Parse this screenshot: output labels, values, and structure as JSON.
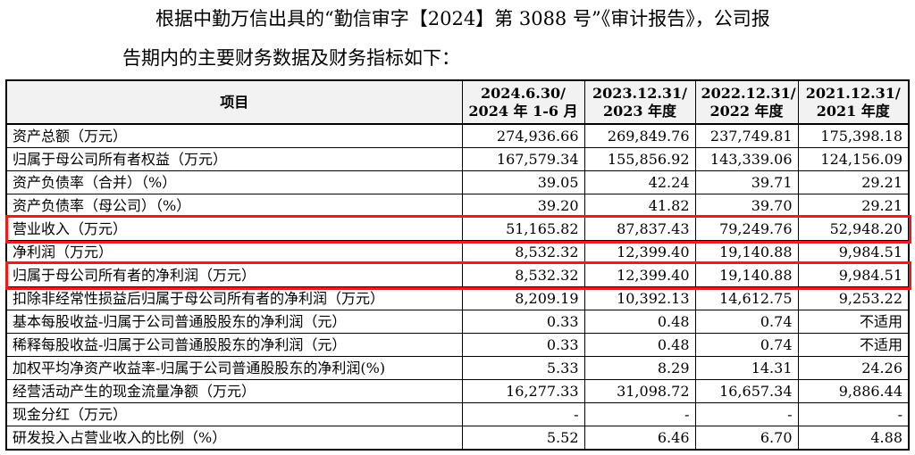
{
  "intro": {
    "line1": "根据中勤万信出具的“勤信审字【2024】第 3088 号”《审计报告》，公司报",
    "line2": "告期内的主要财务数据及财务指标如下："
  },
  "table": {
    "header": {
      "item": "项目",
      "periods": [
        {
          "line1": "2024.6.30/",
          "line2": "2024 年 1-6 月"
        },
        {
          "line1": "2023.12.31/",
          "line2": "2023 年度"
        },
        {
          "line1": "2022.12.31/",
          "line2": "2022 年度"
        },
        {
          "line1": "2021.12.31/",
          "line2": "2021 年度"
        }
      ]
    },
    "rows": [
      {
        "label": "资产总额（万元）",
        "values": [
          "274,936.66",
          "269,849.76",
          "237,749.81",
          "175,398.18"
        ]
      },
      {
        "label": "归属于母公司所有者权益（万元）",
        "values": [
          "167,579.34",
          "155,856.92",
          "143,339.06",
          "124,156.09"
        ]
      },
      {
        "label": "资产负债率（合并）（%）",
        "values": [
          "39.05",
          "42.24",
          "39.71",
          "29.21"
        ]
      },
      {
        "label": "资产负债率（母公司）（%）",
        "values": [
          "39.20",
          "41.82",
          "39.70",
          "29.21"
        ]
      },
      {
        "label": "营业收入（万元）",
        "values": [
          "51,165.82",
          "87,837.43",
          "79,249.76",
          "52,948.20"
        ]
      },
      {
        "label": "净利润（万元）",
        "values": [
          "8,532.32",
          "12,399.40",
          "19,140.88",
          "9,984.51"
        ]
      },
      {
        "label": "归属于母公司所有者的净利润（万元）",
        "values": [
          "8,532.32",
          "12,399.40",
          "19,140.88",
          "9,984.51"
        ]
      },
      {
        "label": "扣除非经常性损益后归属于母公司所有者的净利润（万元）",
        "values": [
          "8,209.19",
          "10,392.13",
          "14,612.75",
          "9,253.22"
        ]
      },
      {
        "label": "基本每股收益-归属于公司普通股股东的净利润（元）",
        "values": [
          "0.33",
          "0.48",
          "0.74",
          "不适用"
        ]
      },
      {
        "label": "稀释每股收益-归属于公司普通股股东的净利润（元）",
        "values": [
          "0.33",
          "0.48",
          "0.74",
          "不适用"
        ]
      },
      {
        "label": "加权平均净资产收益率-归属于公司普通股股东的净利润(%)",
        "values": [
          "5.33",
          "8.29",
          "14.31",
          "24.26"
        ]
      },
      {
        "label": "经营活动产生的现金流量净额（万元）",
        "values": [
          "16,277.33",
          "31,098.72",
          "16,657.34",
          "9,886.44"
        ]
      },
      {
        "label": "现金分红（万元）",
        "values": [
          "-",
          "-",
          "-",
          "-"
        ]
      },
      {
        "label": "研发投入占营业收入的比例（%）",
        "values": [
          "5.52",
          "6.46",
          "6.70",
          "4.88"
        ]
      }
    ]
  },
  "highlight": {
    "color": "#ea1c1c",
    "row_indices": [
      4,
      6
    ]
  }
}
